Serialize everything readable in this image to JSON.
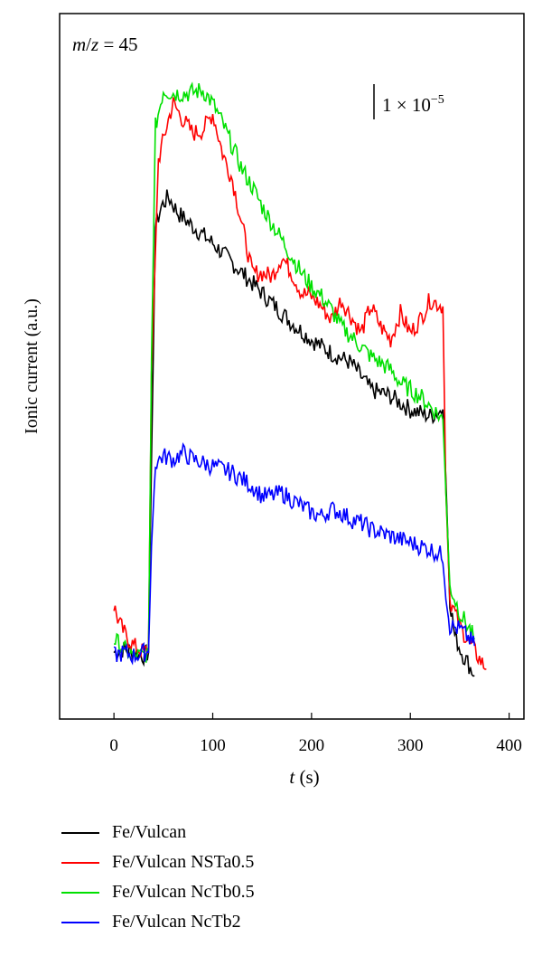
{
  "chart_data": {
    "type": "line",
    "annotation": "m/z = 45",
    "annotation_m": "m",
    "annotation_z": "z",
    "annotation_rest": " = 45",
    "scale_bar": "1 × 10",
    "scale_bar_exp": "−5",
    "xlabel": "t (s)",
    "xlabel_var": "t",
    "xlabel_unit": " (s)",
    "ylabel": "Ionic current (a.u.)",
    "xlim": [
      -55,
      415
    ],
    "xticks": [
      0,
      100,
      200,
      300,
      400
    ],
    "xtick_labels": [
      "0",
      "100",
      "200",
      "300",
      "400"
    ],
    "y_units": "arbitrary",
    "ylim": [
      -0.4,
      10.2
    ],
    "grid": false,
    "legend_position": "below",
    "series": [
      {
        "name": "Fe/Vulcan",
        "color": "#000000",
        "points": [
          [
            0,
            0.6
          ],
          [
            10,
            0.65
          ],
          [
            20,
            0.6
          ],
          [
            30,
            0.55
          ],
          [
            35,
            0.6
          ],
          [
            38,
            3.5
          ],
          [
            42,
            7.0
          ],
          [
            48,
            7.3
          ],
          [
            55,
            7.45
          ],
          [
            65,
            7.2
          ],
          [
            80,
            7.0
          ],
          [
            100,
            6.75
          ],
          [
            120,
            6.45
          ],
          [
            140,
            6.15
          ],
          [
            160,
            5.85
          ],
          [
            180,
            5.55
          ],
          [
            200,
            5.3
          ],
          [
            220,
            5.1
          ],
          [
            240,
            4.95
          ],
          [
            260,
            4.55
          ],
          [
            280,
            4.45
          ],
          [
            300,
            4.25
          ],
          [
            320,
            4.15
          ],
          [
            333,
            4.25
          ],
          [
            336,
            3.2
          ],
          [
            340,
            1.4
          ],
          [
            345,
            0.85
          ],
          [
            352,
            0.6
          ],
          [
            358,
            0.45
          ],
          [
            365,
            0.25
          ]
        ]
      },
      {
        "name": "Fe/Vulcan NSTa0.5",
        "color": "#ff0000",
        "points": [
          [
            0,
            1.3
          ],
          [
            5,
            1.05
          ],
          [
            12,
            0.85
          ],
          [
            20,
            0.7
          ],
          [
            30,
            0.6
          ],
          [
            35,
            0.65
          ],
          [
            38,
            4.8
          ],
          [
            45,
            8.0
          ],
          [
            55,
            8.6
          ],
          [
            60,
            8.85
          ],
          [
            70,
            8.6
          ],
          [
            80,
            8.4
          ],
          [
            90,
            8.45
          ],
          [
            100,
            8.7
          ],
          [
            110,
            8.1
          ],
          [
            120,
            7.7
          ],
          [
            130,
            7.0
          ],
          [
            140,
            6.3
          ],
          [
            150,
            6.3
          ],
          [
            160,
            6.25
          ],
          [
            170,
            6.55
          ],
          [
            180,
            6.3
          ],
          [
            190,
            6.0
          ],
          [
            200,
            5.95
          ],
          [
            210,
            5.8
          ],
          [
            220,
            5.6
          ],
          [
            230,
            5.9
          ],
          [
            240,
            5.65
          ],
          [
            250,
            5.4
          ],
          [
            260,
            5.8
          ],
          [
            270,
            5.5
          ],
          [
            280,
            5.3
          ],
          [
            290,
            5.7
          ],
          [
            300,
            5.4
          ],
          [
            310,
            5.6
          ],
          [
            320,
            5.9
          ],
          [
            333,
            5.8
          ],
          [
            336,
            3.0
          ],
          [
            340,
            1.4
          ],
          [
            350,
            1.0
          ],
          [
            360,
            0.75
          ],
          [
            370,
            0.5
          ],
          [
            377,
            0.35
          ]
        ]
      },
      {
        "name": "Fe/Vulcan NcTb0.5",
        "color": "#00e000",
        "points": [
          [
            0,
            0.8
          ],
          [
            10,
            0.65
          ],
          [
            20,
            0.55
          ],
          [
            30,
            0.55
          ],
          [
            35,
            0.6
          ],
          [
            38,
            5.0
          ],
          [
            42,
            8.5
          ],
          [
            50,
            9.05
          ],
          [
            60,
            9.0
          ],
          [
            75,
            9.0
          ],
          [
            90,
            9.05
          ],
          [
            100,
            8.85
          ],
          [
            110,
            8.55
          ],
          [
            120,
            8.2
          ],
          [
            130,
            7.85
          ],
          [
            140,
            7.6
          ],
          [
            150,
            7.3
          ],
          [
            160,
            7.05
          ],
          [
            170,
            6.8
          ],
          [
            180,
            6.55
          ],
          [
            190,
            6.3
          ],
          [
            200,
            6.1
          ],
          [
            210,
            5.95
          ],
          [
            220,
            5.75
          ],
          [
            230,
            5.5
          ],
          [
            240,
            5.35
          ],
          [
            250,
            5.2
          ],
          [
            260,
            5.05
          ],
          [
            270,
            4.95
          ],
          [
            280,
            4.85
          ],
          [
            290,
            4.65
          ],
          [
            300,
            4.55
          ],
          [
            310,
            4.45
          ],
          [
            320,
            4.3
          ],
          [
            333,
            4.1
          ],
          [
            336,
            3.0
          ],
          [
            340,
            1.6
          ],
          [
            350,
            1.2
          ],
          [
            360,
            0.95
          ],
          [
            365,
            0.8
          ]
        ]
      },
      {
        "name": "Fe/Vulcan NcTb2",
        "color": "#0000ff",
        "points": [
          [
            0,
            0.55
          ],
          [
            10,
            0.6
          ],
          [
            20,
            0.55
          ],
          [
            30,
            0.6
          ],
          [
            35,
            0.6
          ],
          [
            38,
            2.2
          ],
          [
            42,
            3.45
          ],
          [
            50,
            3.55
          ],
          [
            60,
            3.5
          ],
          [
            70,
            3.6
          ],
          [
            80,
            3.5
          ],
          [
            90,
            3.45
          ],
          [
            100,
            3.4
          ],
          [
            110,
            3.35
          ],
          [
            120,
            3.3
          ],
          [
            130,
            3.2
          ],
          [
            140,
            3.1
          ],
          [
            150,
            2.95
          ],
          [
            160,
            2.95
          ],
          [
            170,
            3.0
          ],
          [
            180,
            2.9
          ],
          [
            190,
            2.8
          ],
          [
            200,
            2.7
          ],
          [
            210,
            2.65
          ],
          [
            220,
            2.75
          ],
          [
            230,
            2.7
          ],
          [
            240,
            2.6
          ],
          [
            250,
            2.55
          ],
          [
            260,
            2.45
          ],
          [
            270,
            2.4
          ],
          [
            280,
            2.35
          ],
          [
            290,
            2.3
          ],
          [
            300,
            2.25
          ],
          [
            310,
            2.2
          ],
          [
            320,
            2.15
          ],
          [
            333,
            2.05
          ],
          [
            336,
            1.5
          ],
          [
            340,
            1.0
          ],
          [
            350,
            0.95
          ],
          [
            360,
            0.8
          ],
          [
            365,
            0.7
          ]
        ]
      }
    ]
  }
}
